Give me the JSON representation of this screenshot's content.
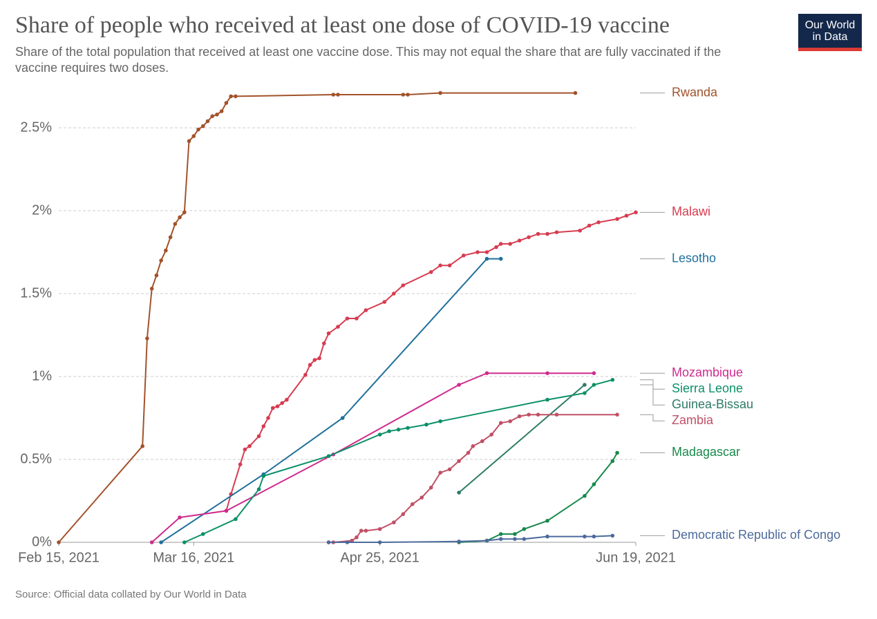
{
  "chart_data": {
    "type": "line",
    "title": "Share of people who received at least one dose of COVID-19 vaccine",
    "subtitle": "Share of the total population that received at least one vaccine dose. This may not equal the share that are fully vaccinated if the vaccine requires two doses.",
    "source": "Source: Official data collated by Our World in Data",
    "logo": [
      "Our World",
      "in Data"
    ],
    "xlim": [
      "2021-02-15",
      "2021-06-19"
    ],
    "xticks": [
      {
        "value": "2021-02-15",
        "label": "Feb 15, 2021"
      },
      {
        "value": "2021-03-16",
        "label": "Mar 16, 2021"
      },
      {
        "value": "2021-04-25",
        "label": "Apr 25, 2021"
      },
      {
        "value": "2021-06-19",
        "label": "Jun 19, 2021"
      }
    ],
    "ylim": [
      0,
      2.75
    ],
    "yticks": [
      {
        "value": 0,
        "label": "0%"
      },
      {
        "value": 0.5,
        "label": "0.5%"
      },
      {
        "value": 1,
        "label": "1%"
      },
      {
        "value": 1.5,
        "label": "1.5%"
      },
      {
        "value": 2,
        "label": "2%"
      },
      {
        "value": 2.5,
        "label": "2.5%"
      }
    ],
    "grid": true,
    "series": [
      {
        "name": "Rwanda",
        "color": "#a2522a",
        "x": [
          "2021-02-15",
          "2021-03-05",
          "2021-03-06",
          "2021-03-07",
          "2021-03-08",
          "2021-03-09",
          "2021-03-10",
          "2021-03-11",
          "2021-03-12",
          "2021-03-13",
          "2021-03-14",
          "2021-03-15",
          "2021-03-16",
          "2021-03-17",
          "2021-03-18",
          "2021-03-19",
          "2021-03-20",
          "2021-03-21",
          "2021-03-22",
          "2021-03-23",
          "2021-03-24",
          "2021-03-25",
          "2021-04-15",
          "2021-04-16",
          "2021-04-30",
          "2021-05-01",
          "2021-05-08",
          "2021-06-06"
        ],
        "values": [
          0,
          0.58,
          1.23,
          1.53,
          1.61,
          1.7,
          1.76,
          1.84,
          1.92,
          1.96,
          1.99,
          2.42,
          2.45,
          2.49,
          2.51,
          2.54,
          2.57,
          2.58,
          2.6,
          2.65,
          2.69,
          2.69,
          2.7,
          2.7,
          2.7,
          2.7,
          2.71,
          2.71
        ]
      },
      {
        "name": "Malawi",
        "color": "#d73c50",
        "x": [
          "2021-03-23",
          "2021-03-24",
          "2021-03-26",
          "2021-03-27",
          "2021-03-28",
          "2021-03-30",
          "2021-03-31",
          "2021-04-01",
          "2021-04-02",
          "2021-04-03",
          "2021-04-04",
          "2021-04-05",
          "2021-04-09",
          "2021-04-10",
          "2021-04-11",
          "2021-04-12",
          "2021-04-13",
          "2021-04-14",
          "2021-04-16",
          "2021-04-18",
          "2021-04-20",
          "2021-04-22",
          "2021-04-26",
          "2021-04-28",
          "2021-04-30",
          "2021-05-06",
          "2021-05-08",
          "2021-05-10",
          "2021-05-13",
          "2021-05-16",
          "2021-05-18",
          "2021-05-20",
          "2021-05-21",
          "2021-05-23",
          "2021-05-25",
          "2021-05-27",
          "2021-05-29",
          "2021-05-31",
          "2021-06-02",
          "2021-06-07",
          "2021-06-09",
          "2021-06-11",
          "2021-06-15",
          "2021-06-17",
          "2021-06-19"
        ],
        "values": [
          0.19,
          0.29,
          0.47,
          0.56,
          0.58,
          0.64,
          0.7,
          0.75,
          0.81,
          0.82,
          0.84,
          0.86,
          1.01,
          1.07,
          1.1,
          1.11,
          1.2,
          1.26,
          1.3,
          1.35,
          1.35,
          1.4,
          1.45,
          1.5,
          1.55,
          1.63,
          1.67,
          1.67,
          1.73,
          1.75,
          1.75,
          1.78,
          1.8,
          1.8,
          1.82,
          1.84,
          1.86,
          1.86,
          1.87,
          1.88,
          1.91,
          1.93,
          1.95,
          1.97,
          1.99
        ]
      },
      {
        "name": "Lesotho",
        "color": "#1f6f9c",
        "x": [
          "2021-03-09",
          "2021-03-31",
          "2021-04-17",
          "2021-05-18",
          "2021-05-21"
        ],
        "values": [
          0,
          0.41,
          0.75,
          1.71,
          1.71
        ]
      },
      {
        "name": "Mozambique",
        "color": "#ce2b8e",
        "x": [
          "2021-03-07",
          "2021-03-13",
          "2021-03-23",
          "2021-04-15",
          "2021-05-12",
          "2021-05-18",
          "2021-05-31",
          "2021-06-10"
        ],
        "values": [
          0,
          0.15,
          0.19,
          0.53,
          0.95,
          1.02,
          1.02,
          1.02
        ]
      },
      {
        "name": "Sierra Leone",
        "color": "#0b9068",
        "x": [
          "2021-03-14",
          "2021-03-18",
          "2021-03-25",
          "2021-03-30",
          "2021-03-31",
          "2021-04-14",
          "2021-04-25",
          "2021-04-27",
          "2021-04-29",
          "2021-05-01",
          "2021-05-05",
          "2021-05-08",
          "2021-05-31",
          "2021-06-08",
          "2021-06-10",
          "2021-06-14"
        ],
        "values": [
          0,
          0.05,
          0.14,
          0.32,
          0.4,
          0.52,
          0.65,
          0.67,
          0.68,
          0.69,
          0.71,
          0.73,
          0.86,
          0.9,
          0.95,
          0.98
        ]
      },
      {
        "name": "Guinea-Bissau",
        "color": "#2d7b66",
        "x": [
          "2021-05-12",
          "2021-06-08"
        ],
        "values": [
          0.3,
          0.95
        ]
      },
      {
        "name": "Zambia",
        "color": "#c15065",
        "x": [
          "2021-04-14",
          "2021-04-15",
          "2021-04-19",
          "2021-04-20",
          "2021-04-21",
          "2021-04-22",
          "2021-04-25",
          "2021-04-28",
          "2021-04-30",
          "2021-05-02",
          "2021-05-04",
          "2021-05-06",
          "2021-05-08",
          "2021-05-10",
          "2021-05-12",
          "2021-05-14",
          "2021-05-15",
          "2021-05-17",
          "2021-05-19",
          "2021-05-21",
          "2021-05-23",
          "2021-05-25",
          "2021-05-27",
          "2021-05-29",
          "2021-06-02",
          "2021-06-15"
        ],
        "values": [
          0,
          0,
          0.01,
          0.03,
          0.07,
          0.07,
          0.08,
          0.12,
          0.17,
          0.23,
          0.27,
          0.33,
          0.42,
          0.44,
          0.49,
          0.54,
          0.58,
          0.61,
          0.65,
          0.72,
          0.73,
          0.76,
          0.77,
          0.77,
          0.77,
          0.77
        ]
      },
      {
        "name": "Madagascar",
        "color": "#18894b",
        "x": [
          "2021-05-12",
          "2021-05-18",
          "2021-05-21",
          "2021-05-24",
          "2021-05-26",
          "2021-05-31",
          "2021-06-08",
          "2021-06-10",
          "2021-06-14",
          "2021-06-15"
        ],
        "values": [
          0,
          0.01,
          0.05,
          0.05,
          0.08,
          0.13,
          0.28,
          0.35,
          0.49,
          0.54
        ]
      },
      {
        "name": "Democratic Republic of Congo",
        "color": "#4c6a9c",
        "x": [
          "2021-04-14",
          "2021-04-18",
          "2021-04-25",
          "2021-05-12",
          "2021-05-18",
          "2021-05-21",
          "2021-05-24",
          "2021-05-26",
          "2021-05-31",
          "2021-06-08",
          "2021-06-10",
          "2021-06-14"
        ],
        "values": [
          0,
          0,
          0,
          0.005,
          0.01,
          0.02,
          0.02,
          0.02,
          0.035,
          0.035,
          0.035,
          0.04
        ]
      }
    ]
  }
}
